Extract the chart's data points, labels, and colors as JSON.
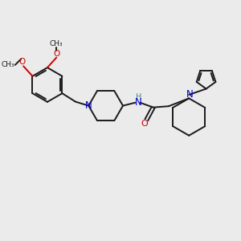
{
  "background_color": "#ebebeb",
  "bond_color": "#1a1a1a",
  "nitrogen_color": "#0000cc",
  "oxygen_color": "#cc0000",
  "amide_nh_color": "#4a8888",
  "line_width": 1.4,
  "figsize": [
    3.0,
    3.0
  ],
  "dpi": 100,
  "xlim": [
    0,
    10
  ],
  "ylim": [
    0,
    10
  ]
}
